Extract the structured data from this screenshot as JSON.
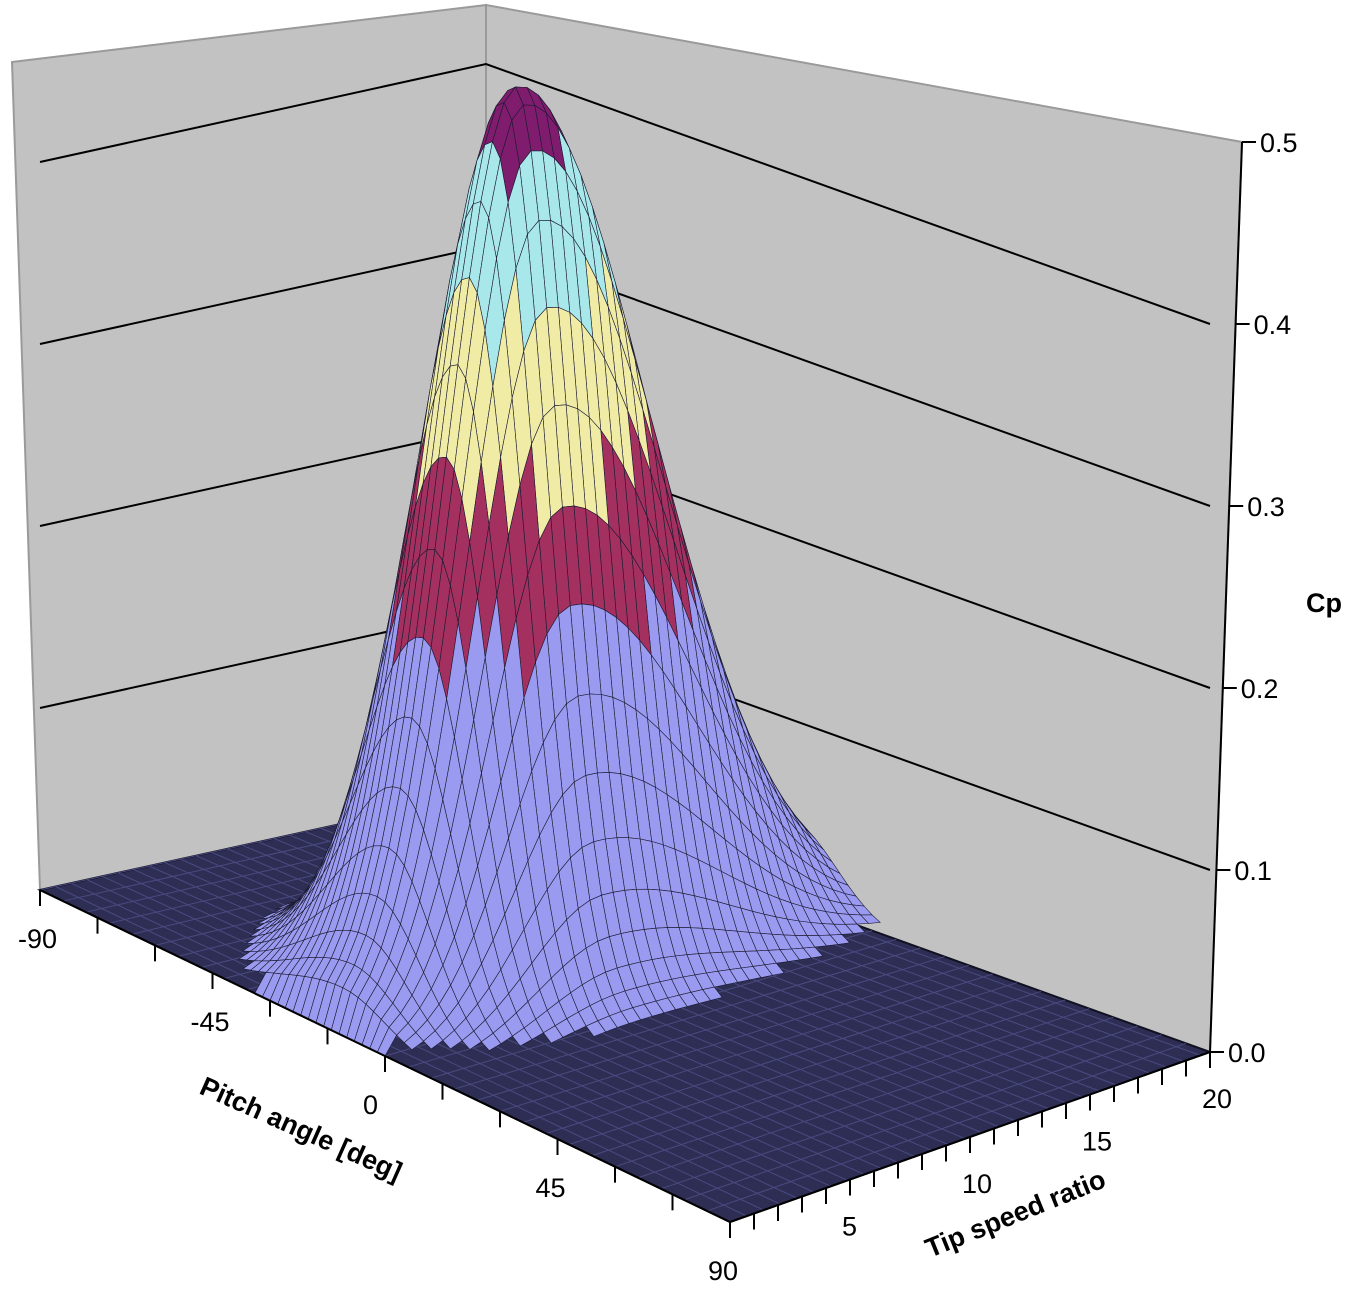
{
  "chart_data": {
    "type": "surface",
    "xlabel": "Pitch angle [deg]",
    "ylabel": "Tip speed ratio",
    "zlabel": "Cp",
    "x_ticks": [
      "-90",
      "-45",
      "0",
      "45",
      "90"
    ],
    "y_ticks": [
      "5",
      "10",
      "15",
      "20"
    ],
    "z_ticks": [
      "0.0",
      "0.1",
      "0.2",
      "0.3",
      "0.4",
      "0.5"
    ],
    "xlim": [
      -90,
      90
    ],
    "ylim": [
      0,
      20
    ],
    "zlim": [
      0,
      0.5
    ],
    "grid": true,
    "peak": {
      "pitch": -14,
      "tsr": 8,
      "cp": 0.49
    },
    "bands": [
      {
        "range": [
          0.0,
          0.1
        ],
        "color": "#9A9AF0"
      },
      {
        "range": [
          0.1,
          0.2
        ],
        "color": "#9A9AF0"
      },
      {
        "range": [
          0.2,
          0.3
        ],
        "color": "#A3305F"
      },
      {
        "range": [
          0.3,
          0.4
        ],
        "color": "#F4F0AA"
      },
      {
        "range": [
          0.4,
          0.5
        ],
        "color": "#AEEDEF"
      },
      {
        "range": [
          0.45,
          0.5
        ],
        "color": "#7F1C6D"
      }
    ],
    "floor_color": "#2E2E55",
    "wall_color": "#C2C2C2"
  }
}
